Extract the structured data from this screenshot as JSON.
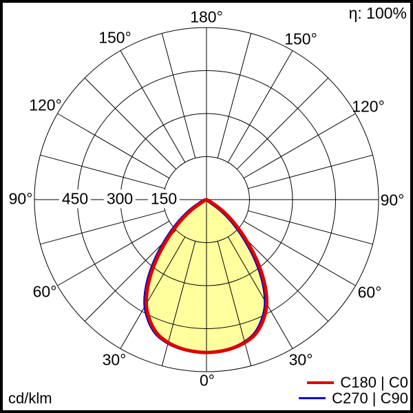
{
  "header": {
    "efficiency_label": "η: 100%"
  },
  "footer": {
    "unit_label": "cd/klm"
  },
  "legend": {
    "items": [
      {
        "label": "C180 | C0",
        "color": "#dd0000"
      },
      {
        "label": "C270 | C90",
        "color": "#0000cc"
      }
    ]
  },
  "colors": {
    "background": "#ffffff",
    "frame": "#000000",
    "grid": "#000000",
    "curve_fill": "#ffff9e",
    "c0_curve": "#dd0000",
    "c90_curve": "#0000cc"
  },
  "chart_data": {
    "type": "polar",
    "subtype": "luminous-intensity-distribution",
    "unit": "cd/klm",
    "efficiency": "η: 100%",
    "angle_labels": [
      "0°",
      "30°",
      "60°",
      "90°",
      "120°",
      "150°",
      "180°"
    ],
    "radial_tick_labels": [
      "450",
      "300",
      "150"
    ],
    "radial_rings_cd": [
      150,
      300,
      450,
      600
    ],
    "radial_max": 600,
    "spoke_step_deg": 15,
    "gamma_deg": [
      0,
      5,
      10,
      15,
      20,
      25,
      30,
      35,
      40,
      45,
      50,
      55,
      60,
      65,
      70,
      75,
      80,
      85,
      90
    ],
    "series": [
      {
        "name": "C180 | C0",
        "color": "#dd0000",
        "symmetric": true,
        "values_cd_klm": [
          533,
          531,
          526,
          516,
          499,
          466,
          420,
          351,
          270,
          190,
          124,
          69,
          22,
          6,
          0,
          0,
          0,
          0,
          0
        ]
      },
      {
        "name": "C270 | C90",
        "color": "#0000cc",
        "symmetric": true,
        "values_cd_klm": [
          533,
          531,
          526,
          516,
          499,
          466,
          420,
          351,
          270,
          190,
          124,
          69,
          22,
          6,
          0,
          0,
          0,
          0,
          0
        ]
      }
    ],
    "legend_position": "bottom-right",
    "grid_on": true
  }
}
